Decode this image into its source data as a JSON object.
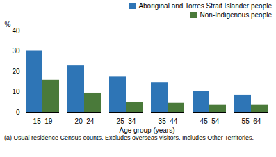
{
  "chart_data": {
    "type": "bar",
    "categories": [
      "15–19",
      "20–24",
      "25–34",
      "35–44",
      "45–54",
      "55–64"
    ],
    "series": [
      {
        "name": "Aboriginal and Torres Strait Islander people",
        "color": "#2e75b6",
        "values": [
          30.0,
          23.0,
          17.5,
          14.5,
          10.5,
          8.5
        ]
      },
      {
        "name": "Non-Indigenous people",
        "color": "#4a7a3a",
        "values": [
          16.0,
          9.5,
          5.0,
          4.5,
          3.5,
          3.5
        ]
      }
    ],
    "xlabel": "Age group (years)",
    "ylabel": "%",
    "ylim": [
      0,
      40
    ],
    "yticks": [
      0,
      10,
      20,
      30,
      40
    ],
    "grid": false,
    "legend": "upper right",
    "annotations": [
      "(a) Usual residence Census counts.  Excludes overseas visitors.  Includes Other Territories."
    ]
  }
}
